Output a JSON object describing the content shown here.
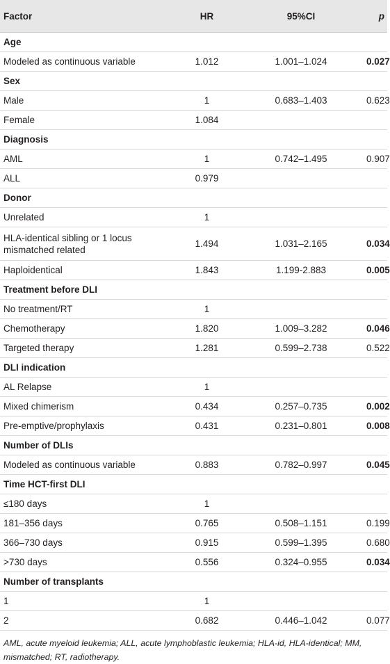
{
  "table": {
    "header": [
      "Factor",
      "HR",
      "95%CI",
      "p"
    ],
    "rows": [
      {
        "section": "Age"
      },
      {
        "factor": "Modeled as continuous variable",
        "hr": "1.012",
        "ci": "1.001–1.024",
        "p": "0.027",
        "p_bold": true
      },
      {
        "section": "Sex"
      },
      {
        "factor": "Male",
        "hr": "1",
        "ci": "0.683–1.403",
        "p": "0.623"
      },
      {
        "factor": "Female",
        "hr": "1.084"
      },
      {
        "section": "Diagnosis"
      },
      {
        "factor": "AML",
        "hr": "1",
        "ci": "0.742–1.495",
        "p": "0.907"
      },
      {
        "factor": "ALL",
        "hr": "0.979"
      },
      {
        "section": "Donor"
      },
      {
        "factor": "Unrelated",
        "hr": "1"
      },
      {
        "factor": "HLA-identical sibling or 1 locus mismatched related",
        "hr": "1.494",
        "ci": "1.031–2.165",
        "p": "0.034",
        "p_bold": true
      },
      {
        "factor": "Haploidentical",
        "hr": "1.843",
        "ci": "1.199-2.883",
        "p": "0.005",
        "p_bold": true
      },
      {
        "section": "Treatment before DLI"
      },
      {
        "factor": "No treatment/RT",
        "hr": "1"
      },
      {
        "factor": "Chemotherapy",
        "hr": "1.820",
        "ci": "1.009–3.282",
        "p": "0.046",
        "p_bold": true
      },
      {
        "factor": "Targeted therapy",
        "hr": "1.281",
        "ci": "0.599–2.738",
        "p": "0.522"
      },
      {
        "section": "DLI indication"
      },
      {
        "factor": "AL Relapse",
        "hr": "1"
      },
      {
        "factor": "Mixed chimerism",
        "hr": "0.434",
        "ci": "0.257–0.735",
        "p": "0.002",
        "p_bold": true
      },
      {
        "factor": "Pre-emptive/prophylaxis",
        "hr": "0.431",
        "ci": "0.231–0.801",
        "p": "0.008",
        "p_bold": true
      },
      {
        "section": "Number of DLIs"
      },
      {
        "factor": "Modeled as continuous variable",
        "hr": "0.883",
        "ci": "0.782–0.997",
        "p": "0.045",
        "p_bold": true
      },
      {
        "section": "Time HCT-first DLI"
      },
      {
        "factor": "≤180 days",
        "hr": "1"
      },
      {
        "factor": "181–356 days",
        "hr": "0.765",
        "ci": "0.508–1.151",
        "p": "0.199"
      },
      {
        "factor": "366–730 days",
        "hr": "0.915",
        "ci": "0.599–1.395",
        "p": "0.680"
      },
      {
        "factor": ">730 days",
        "hr": "0.556",
        "ci": "0.324–0.955",
        "p": "0.034",
        "p_bold": true
      },
      {
        "section": "Number of transplants"
      },
      {
        "factor": "1",
        "hr": "1"
      },
      {
        "factor": "2",
        "hr": "0.682",
        "ci": "0.446–1.042",
        "p": "0.077"
      }
    ],
    "footnote": "AML, acute myeloid leukemia; ALL, acute lymphoblastic leukemia; HLA-id, HLA-identical; MM, mismatched; RT, radiotherapy."
  }
}
